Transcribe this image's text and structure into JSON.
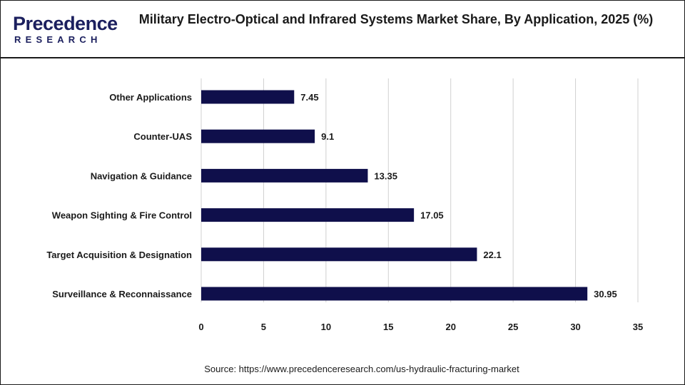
{
  "header": {
    "logo_top": "Precedence",
    "logo_bottom": "RESEARCH",
    "title": "Military Electro-Optical and Infrared Systems Market Share, By Application, 2025 (%)"
  },
  "source": "Source: https://www.precedenceresearch.com/us-hydraulic-fracturing-market",
  "colors": {
    "bar": "#0f0f4b",
    "grid": "#d0d0d0",
    "text": "#1a1a1a",
    "brand": "#1b1f5e"
  },
  "chart_data": {
    "type": "bar",
    "orientation": "horizontal",
    "title": "Military Electro-Optical and Infrared Systems Market Share, By Application, 2025 (%)",
    "categories": [
      "Other Applications",
      "Counter-UAS",
      "Navigation & Guidance",
      "Weapon Sighting & Fire Control",
      "Target Acquisition & Designation",
      "Surveillance & Reconnaissance"
    ],
    "values": [
      7.45,
      9.1,
      13.35,
      17.05,
      22.1,
      30.95
    ],
    "value_labels": [
      "7.45",
      "9.1",
      "13.35",
      "17.05",
      "22.1",
      "30.95"
    ],
    "xlim": [
      0,
      35
    ],
    "xticks": [
      0,
      5,
      10,
      15,
      20,
      25,
      30,
      35
    ],
    "xtick_labels": [
      "0",
      "5",
      "10",
      "15",
      "20",
      "25",
      "30",
      "35"
    ],
    "grid": "vertical",
    "legend": "none",
    "xlabel": "",
    "ylabel": ""
  }
}
